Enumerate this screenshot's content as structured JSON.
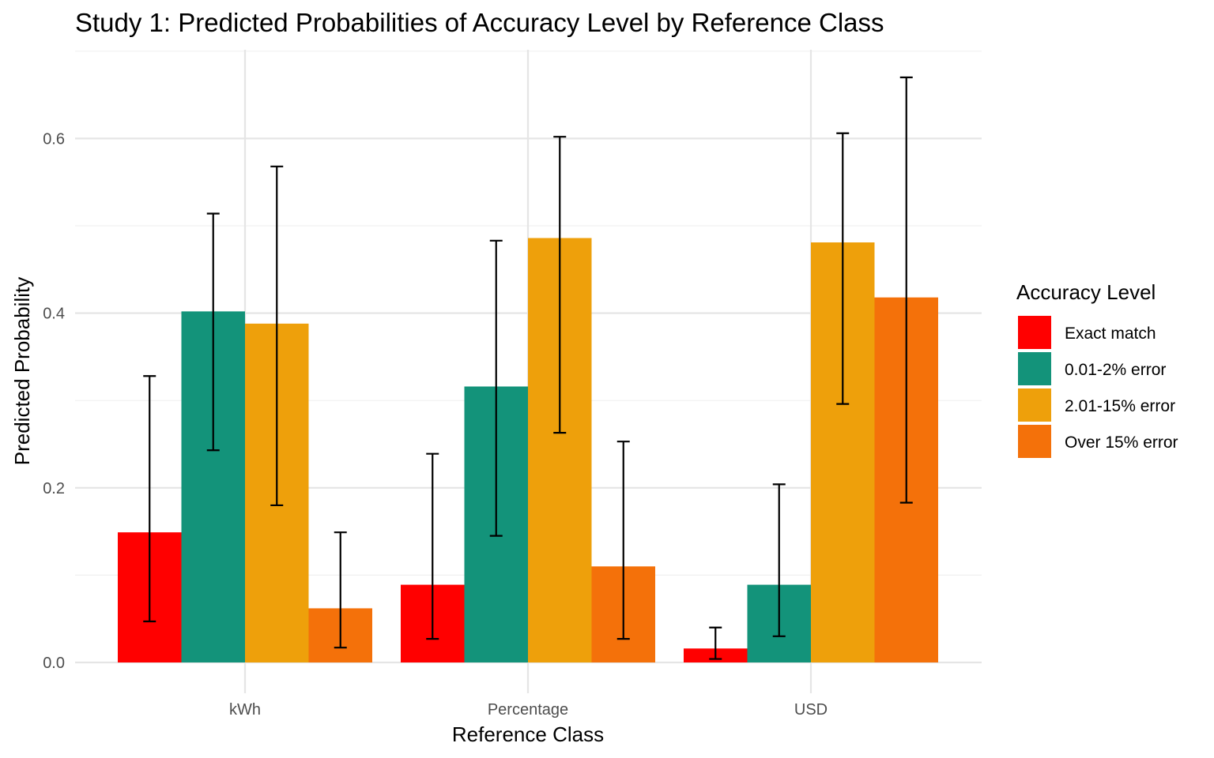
{
  "chart_data": {
    "type": "bar",
    "title": "Study 1: Predicted Probabilities of Accuracy Level by Reference Class",
    "xlabel": "Reference Class",
    "ylabel": "Predicted Probability",
    "categories": [
      "kWh",
      "Percentage",
      "USD"
    ],
    "ylim": [
      -0.05,
      0.7
    ],
    "yticks": [
      0.0,
      0.2,
      0.4,
      0.6
    ],
    "ytick_labels": [
      "0.0",
      "0.2",
      "0.4",
      "0.6"
    ],
    "grid": true,
    "legend": {
      "title": "Accuracy Level",
      "position": "right"
    },
    "error_bars": true,
    "series": [
      {
        "name": "Exact match",
        "color": "#FF0000",
        "values": [
          0.149,
          0.089,
          0.016
        ],
        "lower": [
          0.047,
          0.027,
          0.004
        ],
        "upper": [
          0.328,
          0.239,
          0.04
        ]
      },
      {
        "name": "0.01-2% error",
        "color": "#13937A",
        "values": [
          0.402,
          0.316,
          0.089
        ],
        "lower": [
          0.243,
          0.145,
          0.03
        ],
        "upper": [
          0.514,
          0.483,
          0.204
        ]
      },
      {
        "name": "2.01-15% error",
        "color": "#EEA00B",
        "values": [
          0.388,
          0.486,
          0.481
        ],
        "lower": [
          0.18,
          0.263,
          0.296
        ],
        "upper": [
          0.568,
          0.602,
          0.606
        ]
      },
      {
        "name": "Over 15% error",
        "color": "#F4710A",
        "values": [
          0.062,
          0.11,
          0.418
        ],
        "lower": [
          0.017,
          0.027,
          0.183
        ],
        "upper": [
          0.149,
          0.253,
          0.67
        ]
      }
    ]
  }
}
